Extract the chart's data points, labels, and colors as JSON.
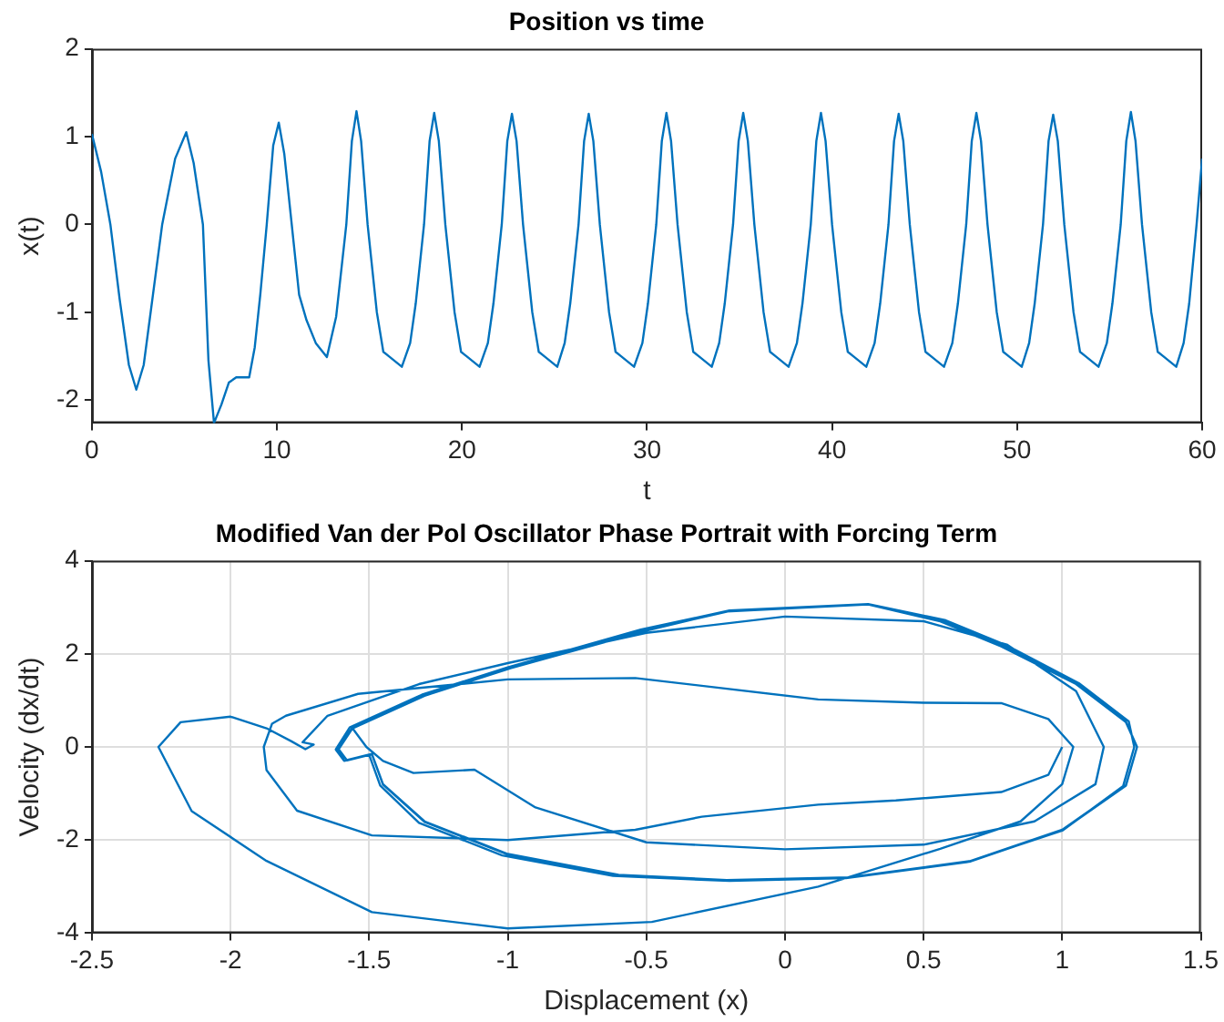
{
  "chart_data": [
    {
      "type": "line",
      "title": "Position vs time",
      "xlabel": "t",
      "ylabel": "x(t)",
      "x": [
        0,
        0.5,
        1.0,
        1.5,
        2.0,
        2.4,
        2.8,
        3.3,
        3.8,
        4.5,
        5.1,
        5.5,
        6.0,
        6.3,
        6.6,
        7.0,
        7.4,
        7.8,
        8.5,
        8.8,
        9.1,
        9.45,
        9.8,
        10.1,
        10.4,
        10.8,
        11.2,
        11.6,
        12.1,
        12.7,
        13.2,
        13.75,
        14.05,
        14.3,
        14.55,
        14.9,
        15.4,
        15.75,
        16.05,
        16.75,
        17.2,
        17.5,
        17.95,
        18.25,
        18.5,
        18.75,
        19.1,
        19.6,
        19.95,
        20.25,
        20.95,
        21.4,
        21.7,
        22.15,
        22.45,
        22.7,
        22.95,
        23.3,
        23.8,
        24.15,
        24.45,
        25.15,
        25.55,
        25.85,
        26.3,
        26.6,
        26.85,
        27.1,
        27.45,
        27.95,
        28.3,
        28.6,
        29.3,
        29.75,
        30.05,
        30.5,
        30.8,
        31.05,
        31.3,
        31.65,
        32.15,
        32.5,
        32.8,
        33.5,
        33.9,
        34.2,
        34.65,
        34.95,
        35.2,
        35.45,
        35.8,
        36.3,
        36.65,
        36.95,
        37.65,
        38.1,
        38.4,
        38.85,
        39.15,
        39.4,
        39.65,
        40.0,
        40.5,
        40.85,
        41.15,
        41.85,
        42.3,
        42.6,
        43.05,
        43.35,
        43.6,
        43.85,
        44.2,
        44.7,
        45.05,
        45.35,
        46.05,
        46.5,
        46.8,
        47.25,
        47.55,
        47.8,
        48.05,
        48.4,
        48.9,
        49.25,
        49.55,
        50.25,
        50.65,
        50.95,
        51.4,
        51.7,
        51.95,
        52.2,
        52.55,
        53.05,
        53.4,
        53.7,
        54.4,
        54.85,
        55.15,
        55.6,
        55.9,
        56.15,
        56.4,
        56.75,
        57.25,
        57.6,
        57.9,
        58.6,
        59.0,
        59.3,
        59.7,
        60
      ],
      "series": [
        {
          "color": "#0072bd",
          "values": [
            1.03,
            0.6,
            0,
            -0.85,
            -1.6,
            -1.88,
            -1.6,
            -0.8,
            0,
            0.75,
            1.05,
            0.7,
            0,
            -1.55,
            -2.26,
            -2.05,
            -1.8,
            -1.74,
            -1.74,
            -1.4,
            -0.8,
            0,
            0.9,
            1.16,
            0.8,
            0,
            -0.8,
            -1.09,
            -1.35,
            -1.51,
            -1.05,
            0,
            0.95,
            1.29,
            0.95,
            0,
            -1.0,
            -1.45,
            -1.5,
            -1.62,
            -1.35,
            -0.9,
            0,
            0.95,
            1.27,
            0.95,
            0,
            -1.0,
            -1.45,
            -1.5,
            -1.62,
            -1.35,
            -0.9,
            0,
            0.95,
            1.26,
            0.95,
            0,
            -1.0,
            -1.45,
            -1.5,
            -1.62,
            -1.35,
            -0.9,
            0,
            0.95,
            1.26,
            0.95,
            0,
            -1.0,
            -1.45,
            -1.5,
            -1.62,
            -1.35,
            -0.9,
            0,
            0.95,
            1.27,
            0.95,
            0,
            -1.0,
            -1.45,
            -1.5,
            -1.62,
            -1.35,
            -0.9,
            0,
            0.95,
            1.27,
            0.95,
            0,
            -1.0,
            -1.45,
            -1.5,
            -1.62,
            -1.35,
            -0.9,
            0,
            0.95,
            1.27,
            0.95,
            0,
            -1.0,
            -1.45,
            -1.5,
            -1.62,
            -1.35,
            -0.9,
            0,
            0.95,
            1.26,
            0.95,
            0,
            -1.0,
            -1.45,
            -1.5,
            -1.62,
            -1.35,
            -0.9,
            0,
            0.95,
            1.27,
            0.95,
            0,
            -1.0,
            -1.45,
            -1.5,
            -1.62,
            -1.35,
            -0.9,
            0,
            0.95,
            1.25,
            0.95,
            0,
            -1.0,
            -1.45,
            -1.5,
            -1.62,
            -1.35,
            -0.9,
            0,
            0.95,
            1.28,
            0.95,
            0,
            -1.0,
            -1.45,
            -1.5,
            -1.62,
            -1.35,
            -0.9,
            0,
            0.75
          ]
        }
      ],
      "xlim": [
        0,
        60
      ],
      "xticks": [
        0,
        10,
        20,
        30,
        40,
        50,
        60
      ],
      "ylim": [
        -2.26,
        2
      ],
      "yticks": [
        -2,
        -1,
        0,
        1,
        2
      ]
    },
    {
      "type": "line",
      "title": "Modified Van der Pol Oscillator Phase Portrait with Forcing Term",
      "xlabel": "Displacement (x)",
      "ylabel": "Velocity (dx/dt)",
      "series": [
        {
          "color": "#0072bd",
          "x": [
            1.0,
            0.95,
            0.78,
            0.4,
            0.12,
            -0.3,
            -0.54,
            -1.0,
            -1.49,
            -1.76,
            -1.87,
            -1.88,
            -1.85,
            -1.8,
            -1.54,
            -1.0,
            -0.54,
            0.12,
            0.5,
            0.78,
            0.95,
            1.04,
            1.0,
            0.85,
            0.56,
            0.12,
            -0.48,
            -1.0,
            -1.49,
            -1.87,
            -2.14,
            -2.26,
            -2.18,
            -2.0,
            -1.87,
            -1.78,
            -1.73,
            -1.7,
            -1.74,
            -1.65,
            -1.32,
            -1.0,
            -0.5,
            0,
            0.5,
            0.8,
            1.05,
            1.15,
            1.12,
            0.9,
            0.5,
            0,
            -0.5,
            -0.9,
            -1.12,
            -1.34,
            -1.45,
            -1.51,
            -1.56,
            -1.3,
            -0.99,
            -0.5,
            -0.21,
            0.3,
            0.56,
            0.78,
            1.05,
            1.23,
            1.27,
            1.23,
            1.0,
            0.67,
            0.23,
            -0.21,
            -0.6,
            -1.0,
            -1.3,
            -1.45,
            -1.49,
            -1.58,
            -1.62,
            -1.57,
            -1.31,
            -1.0,
            -0.52,
            -0.2,
            0.3,
            0.58,
            0.8,
            1.06,
            1.24,
            1.26,
            1.22,
            1.0,
            0.66,
            0.22,
            -0.2,
            -0.62,
            -1.02,
            -1.32,
            -1.46,
            -1.5,
            -1.59,
            -1.62,
            -1.56,
            -1.3,
            -0.99,
            -0.5,
            -0.2,
            0.3,
            0.57,
            0.79,
            1.05,
            1.23,
            1.27,
            1.23,
            1.0,
            0.67,
            0.23,
            -0.21,
            -0.6,
            -1.0,
            -1.3,
            -1.45,
            -1.49,
            -1.58,
            -1.61,
            -1.56,
            -1.3,
            -0.99,
            -0.5,
            -0.21,
            0.3,
            0.56,
            0.78,
            1.05,
            1.23,
            1.27
          ],
          "values": [
            0,
            -0.6,
            -0.97,
            -1.15,
            -1.24,
            -1.5,
            -1.78,
            -2.0,
            -1.9,
            -1.37,
            -0.5,
            0,
            0.5,
            0.67,
            1.14,
            1.45,
            1.48,
            1.02,
            0.95,
            0.94,
            0.6,
            0,
            -0.8,
            -1.6,
            -2.19,
            -3.0,
            -3.76,
            -3.9,
            -3.55,
            -2.45,
            -1.38,
            0,
            0.53,
            0.65,
            0.4,
            0.12,
            -0.05,
            0.05,
            0.1,
            0.67,
            1.35,
            1.8,
            2.45,
            2.8,
            2.7,
            2.2,
            1.2,
            0,
            -0.8,
            -1.6,
            -2.1,
            -2.2,
            -2.05,
            -1.3,
            -0.49,
            -0.56,
            -0.3,
            0,
            0.4,
            1.1,
            1.69,
            2.5,
            2.91,
            3.06,
            2.7,
            2.16,
            1.35,
            0.53,
            0,
            -0.82,
            -1.78,
            -2.45,
            -2.8,
            -2.86,
            -2.75,
            -2.3,
            -1.6,
            -0.8,
            -0.15,
            -0.28,
            -0.05,
            0.42,
            1.12,
            1.71,
            2.52,
            2.93,
            3.07,
            2.72,
            2.18,
            1.37,
            0.55,
            0,
            -0.84,
            -1.8,
            -2.47,
            -2.82,
            -2.88,
            -2.77,
            -2.33,
            -1.63,
            -0.83,
            -0.17,
            -0.3,
            -0.06,
            0.41,
            1.11,
            1.7,
            2.51,
            2.92,
            3.06,
            2.71,
            2.17,
            1.36,
            0.54,
            0,
            -0.83,
            -1.79,
            -2.46,
            -2.81,
            -2.87,
            -2.76,
            -2.31,
            -1.61,
            -0.81,
            -0.16,
            -0.29,
            -0.05,
            0.4,
            1.1,
            1.69,
            2.5,
            2.91,
            3.06,
            2.7,
            2.16,
            1.35,
            0.53,
            0
          ]
        }
      ],
      "xlim": [
        -2.5,
        1.5
      ],
      "xticks": [
        -2.5,
        -2,
        -1.5,
        -1,
        -0.5,
        0,
        0.5,
        1,
        1.5
      ],
      "ylim": [
        -4,
        4
      ],
      "yticks": [
        -4,
        -2,
        0,
        2,
        4
      ],
      "grid": true
    }
  ]
}
